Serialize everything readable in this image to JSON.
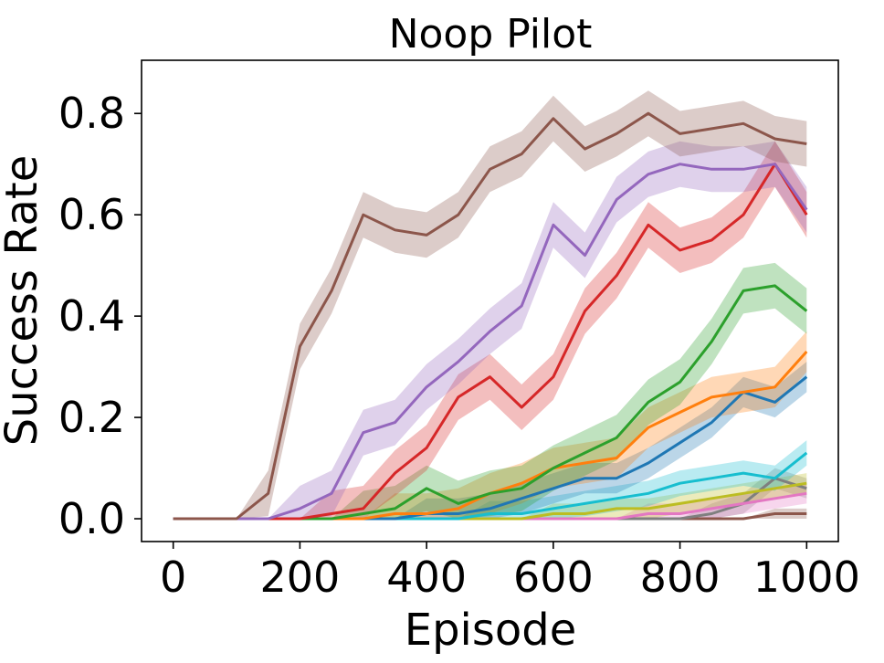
{
  "chart_data": {
    "type": "line",
    "title": "Noop Pilot",
    "xlabel": "Episode",
    "ylabel": "Success Rate",
    "xlim": [
      -50,
      1050
    ],
    "ylim": [
      -0.045,
      0.905
    ],
    "xticks": [
      0,
      200,
      400,
      600,
      800,
      1000
    ],
    "xtick_labels": [
      "0",
      "200",
      "400",
      "600",
      "800",
      "1000"
    ],
    "yticks": [
      0.0,
      0.2,
      0.4,
      0.6,
      0.8
    ],
    "ytick_labels": [
      "0.0",
      "0.2",
      "0.4",
      "0.6",
      "0.8"
    ],
    "grid": false,
    "legend": "none",
    "x": [
      0,
      50,
      100,
      150,
      200,
      250,
      300,
      350,
      400,
      450,
      500,
      550,
      600,
      650,
      700,
      750,
      800,
      850,
      900,
      950,
      1000
    ],
    "series": [
      {
        "color": "#8c564b",
        "band": 0.045,
        "values": [
          0.0,
          0.0,
          0.0,
          0.05,
          0.34,
          0.45,
          0.6,
          0.57,
          0.56,
          0.6,
          0.69,
          0.72,
          0.79,
          0.73,
          0.76,
          0.8,
          0.76,
          0.77,
          0.78,
          0.75,
          0.74
        ]
      },
      {
        "color": "#9467bd",
        "band": 0.045,
        "values": [
          0.0,
          0.0,
          0.0,
          0.0,
          0.02,
          0.05,
          0.17,
          0.19,
          0.26,
          0.31,
          0.37,
          0.42,
          0.58,
          0.52,
          0.63,
          0.68,
          0.7,
          0.69,
          0.69,
          0.7,
          0.61
        ]
      },
      {
        "color": "#d62728",
        "band": 0.045,
        "values": [
          0.0,
          0.0,
          0.0,
          0.0,
          0.0,
          0.01,
          0.02,
          0.09,
          0.14,
          0.24,
          0.28,
          0.22,
          0.28,
          0.41,
          0.48,
          0.58,
          0.53,
          0.55,
          0.6,
          0.7,
          0.6
        ]
      },
      {
        "color": "#2ca02c",
        "band": 0.045,
        "values": [
          0.0,
          0.0,
          0.0,
          0.0,
          0.0,
          0.0,
          0.01,
          0.02,
          0.06,
          0.03,
          0.05,
          0.06,
          0.1,
          0.13,
          0.16,
          0.23,
          0.27,
          0.35,
          0.45,
          0.46,
          0.41
        ]
      },
      {
        "color": "#ff7f0e",
        "band": 0.04,
        "values": [
          0.0,
          0.0,
          0.0,
          0.0,
          0.0,
          0.0,
          0.0,
          0.01,
          0.01,
          0.02,
          0.05,
          0.07,
          0.1,
          0.11,
          0.12,
          0.18,
          0.21,
          0.24,
          0.25,
          0.26,
          0.33
        ]
      },
      {
        "color": "#1f77b4",
        "band": 0.03,
        "values": [
          0.0,
          0.0,
          0.0,
          0.0,
          0.0,
          0.0,
          0.0,
          0.0,
          0.01,
          0.01,
          0.02,
          0.04,
          0.06,
          0.08,
          0.08,
          0.11,
          0.15,
          0.19,
          0.25,
          0.23,
          0.28
        ]
      },
      {
        "color": "#17becf",
        "band": 0.025,
        "values": [
          0.0,
          0.0,
          0.0,
          0.0,
          0.0,
          0.0,
          0.0,
          0.0,
          0.0,
          0.0,
          0.01,
          0.01,
          0.02,
          0.03,
          0.04,
          0.05,
          0.07,
          0.08,
          0.09,
          0.08,
          0.13
        ]
      },
      {
        "color": "#bcbd22",
        "band": 0.02,
        "values": [
          0.0,
          0.0,
          0.0,
          0.0,
          0.0,
          0.0,
          0.0,
          0.0,
          0.0,
          0.0,
          0.0,
          0.0,
          0.01,
          0.01,
          0.02,
          0.02,
          0.03,
          0.04,
          0.05,
          0.06,
          0.07
        ]
      },
      {
        "color": "#e377c2",
        "band": 0.02,
        "values": [
          0.0,
          0.0,
          0.0,
          0.0,
          0.0,
          0.0,
          0.0,
          0.0,
          0.0,
          0.0,
          0.0,
          0.0,
          0.0,
          0.0,
          0.0,
          0.01,
          0.01,
          0.02,
          0.03,
          0.04,
          0.05
        ]
      },
      {
        "color": "#7f7f7f",
        "band": 0.02,
        "values": [
          0.0,
          0.0,
          0.0,
          0.0,
          0.0,
          0.0,
          0.0,
          0.0,
          0.0,
          0.0,
          0.0,
          0.0,
          0.0,
          0.0,
          0.0,
          0.0,
          0.0,
          0.01,
          0.03,
          0.08,
          0.06
        ]
      },
      {
        "color": "#8c564b",
        "band": 0.01,
        "values": [
          0.0,
          0.0,
          0.0,
          0.0,
          0.0,
          0.0,
          0.0,
          0.0,
          0.0,
          0.0,
          0.0,
          0.0,
          0.0,
          0.0,
          0.0,
          0.0,
          0.0,
          0.0,
          0.0,
          0.01,
          0.01
        ]
      }
    ]
  }
}
